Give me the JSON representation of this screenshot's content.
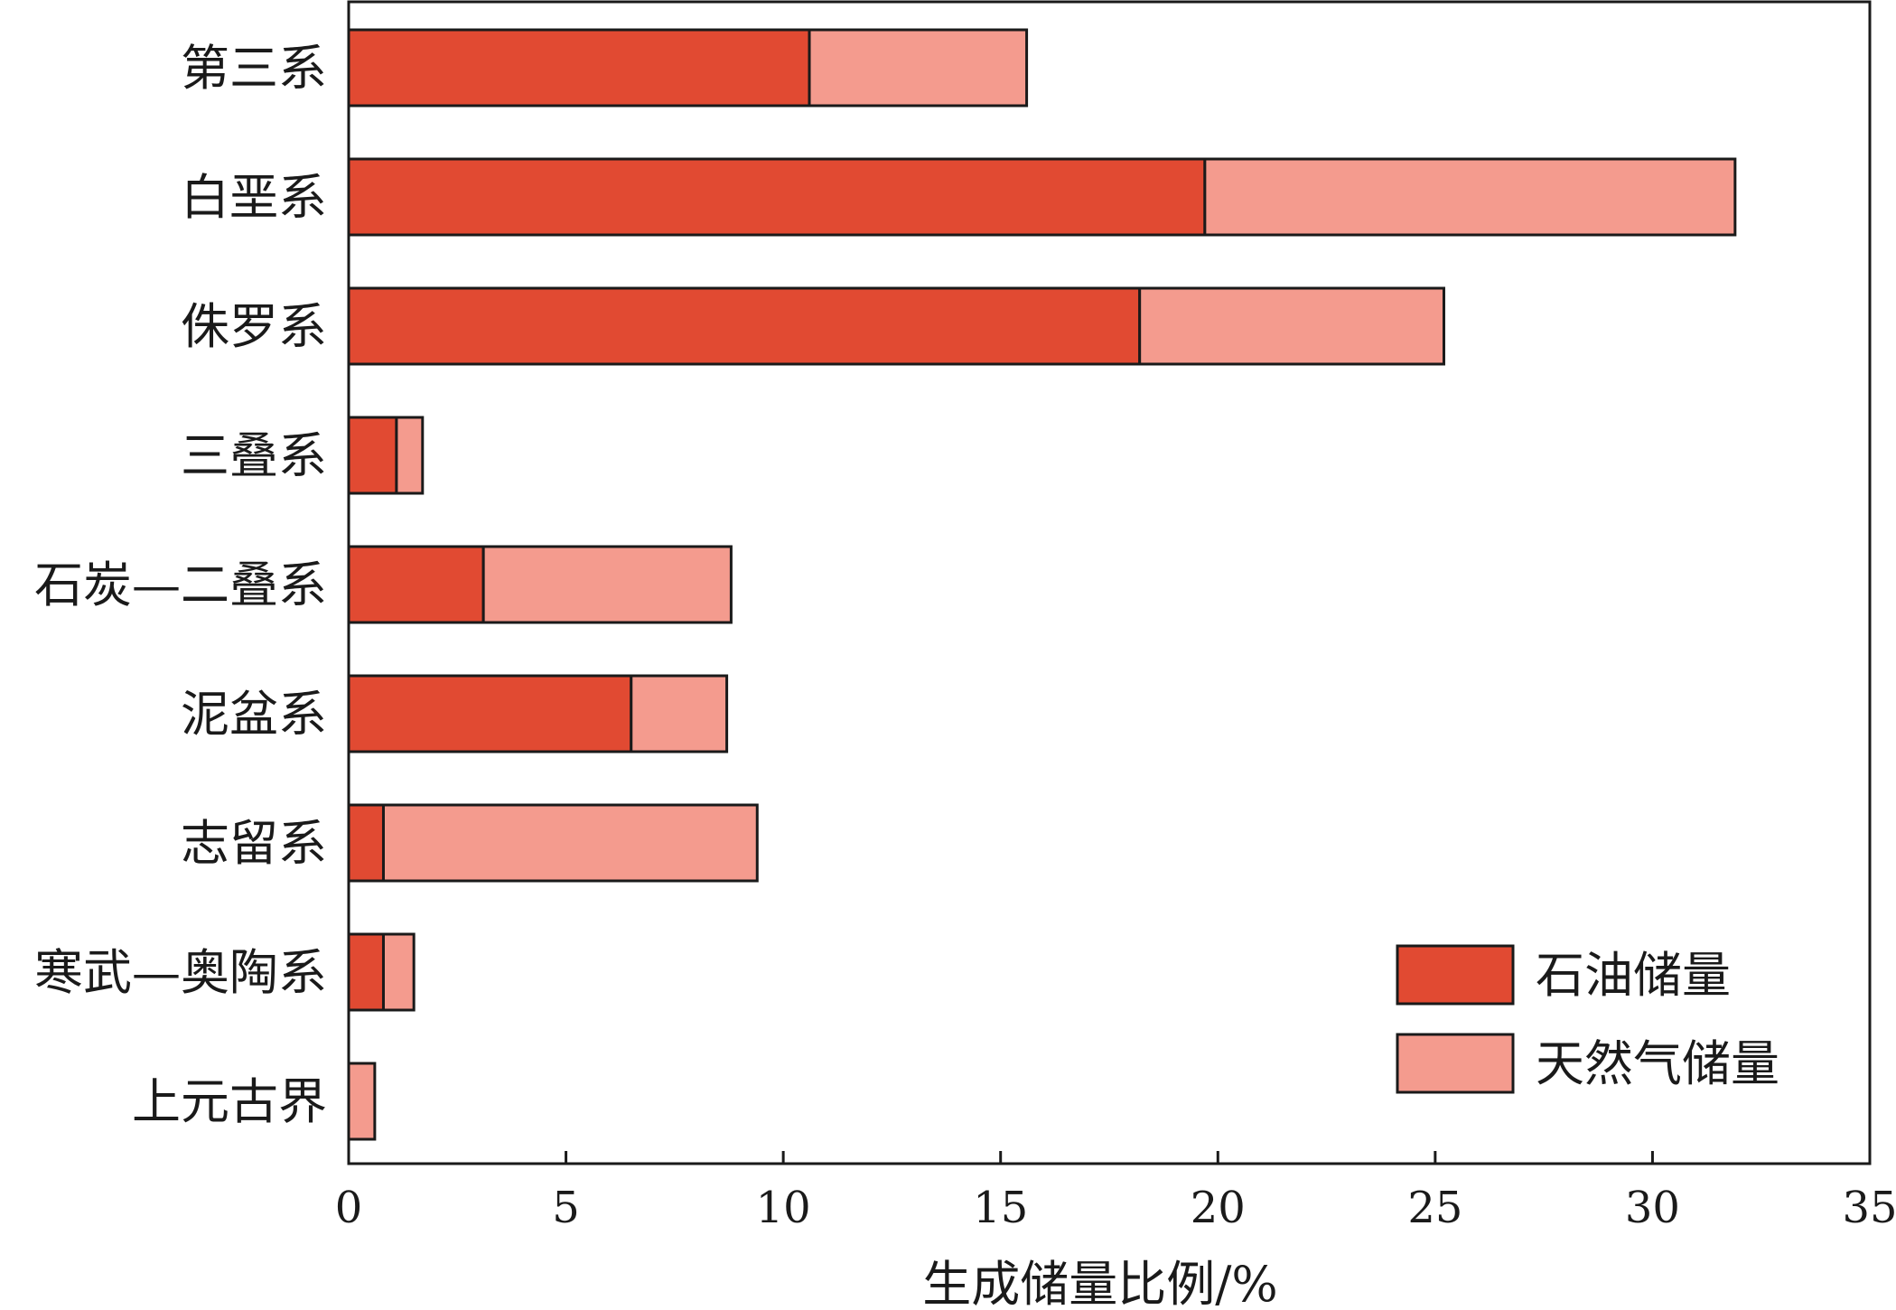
{
  "chart_data": {
    "type": "bar",
    "orientation": "horizontal",
    "stacked": true,
    "title": "",
    "xlabel": "生成储量比例/%",
    "ylabel": "",
    "xlim": [
      0,
      35
    ],
    "xticks": [
      0,
      5,
      10,
      15,
      20,
      25,
      30,
      35
    ],
    "grid": false,
    "legend_position": "bottom-right",
    "categories": [
      "第三系",
      "白垩系",
      "侏罗系",
      "三叠系",
      "石炭—二叠系",
      "泥盆系",
      "志留系",
      "寒武—奥陶系",
      "上元古界"
    ],
    "series": [
      {
        "name": "石油储量",
        "color": "#e14a32",
        "values": [
          10.6,
          19.7,
          18.2,
          1.1,
          3.1,
          6.5,
          0.8,
          0.8,
          0.0
        ]
      },
      {
        "name": "天然气储量",
        "color": "#f49b8e",
        "values": [
          5.0,
          12.2,
          7.0,
          0.6,
          5.7,
          2.2,
          8.6,
          0.7,
          0.6
        ]
      }
    ]
  }
}
